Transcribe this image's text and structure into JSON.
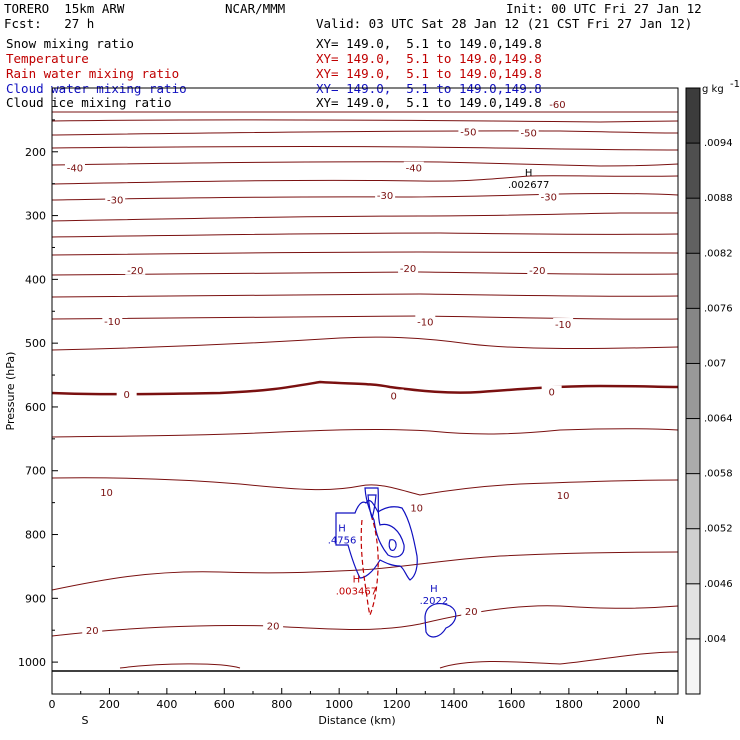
{
  "header": {
    "model": "TORERO  15km ARW",
    "center": "NCAR/MMM",
    "init": "Init: 00 UTC Fri 27 Jan 12",
    "fcst": "Fcst:   27 h",
    "valid": "Valid: 03 UTC Sat 28 Jan 12 (21 CST Fri 27 Jan 12)"
  },
  "legend": [
    {
      "name": "Snow mixing ratio",
      "xy": "XY= 149.0,  5.1 to 149.0,149.8",
      "color": "#000000"
    },
    {
      "name": "Temperature",
      "xy": "XY= 149.0,  5.1 to 149.0,149.8",
      "color": "#c00000"
    },
    {
      "name": "Rain water mixing ratio",
      "xy": "XY= 149.0,  5.1 to 149.0,149.8",
      "color": "#c00000"
    },
    {
      "name": "Cloud water mixing ratio",
      "xy": "XY= 149.0,  5.1 to 149.0,149.8",
      "color": "#1010c0"
    },
    {
      "name": "Cloud ice mixing ratio",
      "xy": "XY= 149.0,  5.1 to 149.0,149.8",
      "color": "#000000"
    }
  ],
  "chart_data": {
    "type": "contour",
    "xlabel": "Distance (km)",
    "ylabel": "Pressure (hPa)",
    "x_range": [
      0,
      2180
    ],
    "y_range": [
      100,
      1050
    ],
    "x_ticks": [
      0,
      200,
      400,
      600,
      800,
      1000,
      1200,
      1400,
      1600,
      1800,
      2000
    ],
    "y_ticks": [
      200,
      300,
      400,
      500,
      600,
      700,
      800,
      900,
      1000
    ],
    "x_endpoints": {
      "left": "S",
      "right": "N"
    },
    "colorbar": {
      "unit": "g kg",
      "unit_exp": "-1",
      "ticks": [
        ".0094",
        ".0088",
        ".0082",
        ".0076",
        ".007",
        ".0064",
        ".0058",
        ".0052",
        ".0046",
        ".004"
      ]
    },
    "temperature_labels": [
      {
        "text": "-60",
        "x": 1760,
        "p": 125
      },
      {
        "text": "-50",
        "x": 1450,
        "p": 168
      },
      {
        "text": "-50",
        "x": 1660,
        "p": 170
      },
      {
        "text": "-40",
        "x": 80,
        "p": 225
      },
      {
        "text": "-40",
        "x": 1260,
        "p": 225
      },
      {
        "text": "-30",
        "x": 220,
        "p": 275
      },
      {
        "text": "-30",
        "x": 1160,
        "p": 268
      },
      {
        "text": "-30",
        "x": 1730,
        "p": 270
      },
      {
        "text": "-20",
        "x": 290,
        "p": 385
      },
      {
        "text": "-20",
        "x": 1240,
        "p": 382
      },
      {
        "text": "-20",
        "x": 1690,
        "p": 385
      },
      {
        "text": "-10",
        "x": 210,
        "p": 465
      },
      {
        "text": "-10",
        "x": 1300,
        "p": 466
      },
      {
        "text": "-10",
        "x": 1780,
        "p": 470
      },
      {
        "text": "0",
        "x": 260,
        "p": 580
      },
      {
        "text": "0",
        "x": 1190,
        "p": 582
      },
      {
        "text": "0",
        "x": 1740,
        "p": 576
      },
      {
        "text": "10",
        "x": 190,
        "p": 733
      },
      {
        "text": "10",
        "x": 1270,
        "p": 758
      },
      {
        "text": "10",
        "x": 1780,
        "p": 738
      },
      {
        "text": "20",
        "x": 140,
        "p": 950
      },
      {
        "text": "20",
        "x": 770,
        "p": 943
      },
      {
        "text": "20",
        "x": 1460,
        "p": 920
      }
    ],
    "extrema": [
      {
        "kind": "H",
        "value": ".002677",
        "x": 1660,
        "p": 238,
        "color": "#000000"
      },
      {
        "kind": "H",
        "value": ".4756",
        "x": 1010,
        "p": 795,
        "color": "#1010c0"
      },
      {
        "kind": "H",
        "value": ".003467",
        "x": 1060,
        "p": 875,
        "color": "#c00000"
      },
      {
        "kind": "H",
        "value": ".2022",
        "x": 1330,
        "p": 890,
        "color": "#1010c0"
      }
    ]
  }
}
